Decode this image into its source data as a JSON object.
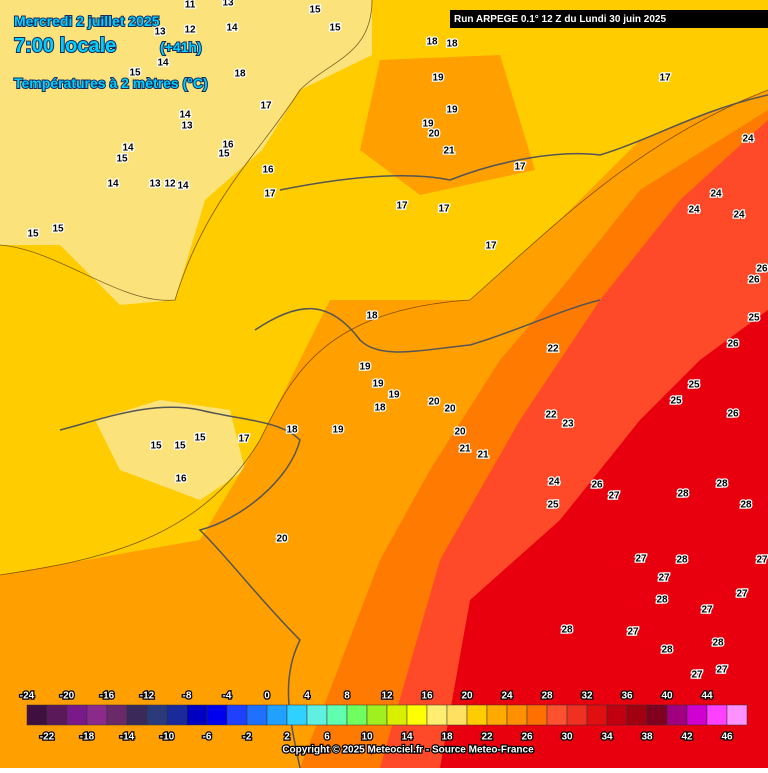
{
  "header": {
    "date": "Mercredi 2 juillet 2025",
    "time": "7:00 locale",
    "lead": "(+41h)",
    "variable": "Températures à 2 mètres (°C)",
    "run": "Run ARPEGE 0.1° 12 Z du Lundi 30 juin 2025"
  },
  "map_labels": [
    11,
    13,
    15,
    15,
    13,
    12,
    14,
    14,
    15,
    14,
    13,
    16,
    15,
    14,
    15,
    18,
    17,
    16,
    17,
    14,
    13,
    12,
    14,
    15,
    15,
    18,
    18,
    19,
    19,
    19,
    20,
    21,
    17,
    17,
    17,
    17,
    17,
    24,
    24,
    24,
    24,
    26,
    26,
    25,
    26,
    18,
    19,
    19,
    19,
    18,
    20,
    20,
    22,
    22,
    23,
    25,
    25,
    26,
    15,
    15,
    15,
    17,
    18,
    19,
    20,
    21,
    21,
    16,
    24,
    26,
    27,
    25,
    28,
    28,
    28,
    20,
    27,
    28,
    27,
    27,
    27,
    28,
    27,
    28,
    27,
    28,
    28,
    27,
    27
  ],
  "scale": {
    "colors": [
      "#3f0f3f",
      "#5a1a5a",
      "#7a1a8a",
      "#8a2a8a",
      "#6a2a6a",
      "#3a2a5a",
      "#2a3a7a",
      "#1a2a9a",
      "#0000c0",
      "#0000ee",
      "#2040ff",
      "#2070ff",
      "#20a0ff",
      "#30d0ff",
      "#60f0e0",
      "#60ffb0",
      "#70ff60",
      "#a0f020",
      "#d8f000",
      "#ffff00",
      "#ffee70",
      "#ffe060",
      "#ffcc00",
      "#ffaa00",
      "#ff9000",
      "#ff7000",
      "#ff5030",
      "#f03020",
      "#e01010",
      "#c00010",
      "#a00010",
      "#800020",
      "#a00080",
      "#d000d0",
      "#ff40ff",
      "#ff90ff"
    ],
    "top_labels": [
      -24,
      -20,
      -16,
      -12,
      -8,
      -4,
      0,
      4,
      8,
      12,
      16,
      20,
      24,
      28,
      32,
      36,
      40,
      44
    ],
    "bottom_labels": [
      -22,
      -18,
      -14,
      -10,
      -6,
      -2,
      2,
      6,
      10,
      14,
      18,
      22,
      26,
      30,
      34,
      38,
      42,
      46
    ]
  },
  "footer": {
    "copyright": "Copyright © 2025 Meteociel.fr - Source Meteo-France"
  }
}
